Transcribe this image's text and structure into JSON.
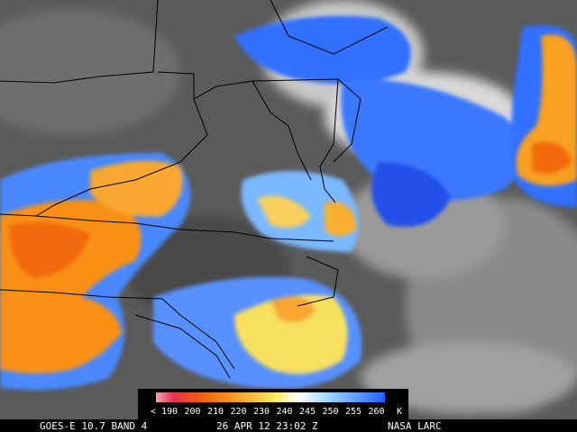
{
  "legend": {
    "labels": [
      "< 190",
      "200",
      "210",
      "220",
      "230",
      "240",
      "245",
      "250",
      "255",
      "260",
      "K"
    ]
  },
  "caption": {
    "satellite": "GOES-E 10.7 BAND 4",
    "time": "26 APR 12 23:02 Z",
    "source": "NASA LARC"
  }
}
